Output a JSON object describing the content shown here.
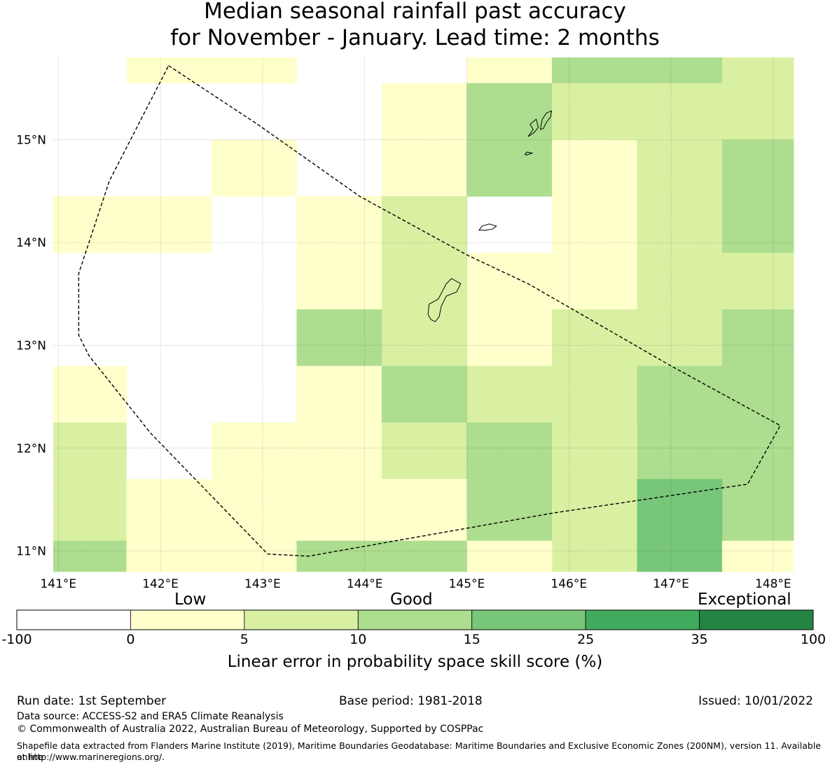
{
  "title": {
    "line1": "Median seasonal rainfall past accuracy",
    "line2": "for November - January. Lead time: 2 months"
  },
  "map": {
    "lon_range": [
      140.95,
      148.2
    ],
    "lat_range": [
      10.8,
      15.8
    ],
    "lon_ticks": [
      {
        "value": 141,
        "label": "141°E"
      },
      {
        "value": 142,
        "label": "142°E"
      },
      {
        "value": 143,
        "label": "143°E"
      },
      {
        "value": 144,
        "label": "144°E"
      },
      {
        "value": 145,
        "label": "145°E"
      },
      {
        "value": 146,
        "label": "146°E"
      },
      {
        "value": 147,
        "label": "147°E"
      },
      {
        "value": 148,
        "label": "148°E"
      }
    ],
    "lat_ticks": [
      {
        "value": 15,
        "label": "15°N"
      },
      {
        "value": 14,
        "label": "14°N"
      },
      {
        "value": 13,
        "label": "13°N"
      },
      {
        "value": 12,
        "label": "12°N"
      },
      {
        "value": 11,
        "label": "11°N"
      }
    ],
    "grid": true,
    "colors": [
      "#ffffff",
      "#ffffcc",
      "#d9f0a3",
      "#addd8e",
      "#78c679",
      "#41ab5d",
      "#238443"
    ],
    "cells": [
      {
        "lon": [
          141.6667,
          143.3333
        ],
        "lat": [
          15.55,
          15.8
        ],
        "cls": 1
      },
      {
        "lon": [
          144.1667,
          145.0
        ],
        "lat": [
          14.45,
          15.55
        ],
        "cls": 1
      },
      {
        "lon": [
          145.0,
          145.8333
        ],
        "lat": [
          15.55,
          15.8
        ],
        "cls": 1
      },
      {
        "lon": [
          145.0,
          145.8333
        ],
        "lat": [
          14.45,
          15.55
        ],
        "cls": 3
      },
      {
        "lon": [
          145.8333,
          147.5
        ],
        "lat": [
          15.55,
          15.8
        ],
        "cls": 3
      },
      {
        "lon": [
          145.8333,
          147.5
        ],
        "lat": [
          15.0,
          15.55
        ],
        "cls": 2
      },
      {
        "lon": [
          147.5,
          148.2
        ],
        "lat": [
          15.0,
          15.8
        ],
        "cls": 2
      },
      {
        "lon": [
          142.5,
          143.3333
        ],
        "lat": [
          14.45,
          15.0
        ],
        "cls": 1
      },
      {
        "lon": [
          145.8333,
          146.6667
        ],
        "lat": [
          13.35,
          15.0
        ],
        "cls": 1
      },
      {
        "lon": [
          146.6667,
          147.5
        ],
        "lat": [
          13.35,
          15.0
        ],
        "cls": 2
      },
      {
        "lon": [
          147.5,
          148.2
        ],
        "lat": [
          13.9,
          15.0
        ],
        "cls": 3
      },
      {
        "lon": [
          140.95,
          142.5
        ],
        "lat": [
          13.9,
          14.45
        ],
        "cls": 1
      },
      {
        "lon": [
          143.3333,
          144.1667
        ],
        "lat": [
          13.35,
          14.45
        ],
        "cls": 1
      },
      {
        "lon": [
          144.1667,
          145.0
        ],
        "lat": [
          12.8,
          14.45
        ],
        "cls": 2
      },
      {
        "lon": [
          145.0,
          145.8333
        ],
        "lat": [
          12.8,
          13.9
        ],
        "cls": 1
      },
      {
        "lon": [
          147.5,
          148.2
        ],
        "lat": [
          13.35,
          13.9
        ],
        "cls": 2
      },
      {
        "lon": [
          143.3333,
          144.1667
        ],
        "lat": [
          12.8,
          13.35
        ],
        "cls": 3
      },
      {
        "lon": [
          145.8333,
          147.5
        ],
        "lat": [
          12.8,
          13.35
        ],
        "cls": 2
      },
      {
        "lon": [
          147.5,
          148.2
        ],
        "lat": [
          11.1,
          13.35
        ],
        "cls": 3
      },
      {
        "lon": [
          140.95,
          141.6667
        ],
        "lat": [
          12.25,
          12.8
        ],
        "cls": 1
      },
      {
        "lon": [
          143.3333,
          144.1667
        ],
        "lat": [
          12.25,
          12.8
        ],
        "cls": 1
      },
      {
        "lon": [
          144.1667,
          145.0
        ],
        "lat": [
          12.25,
          12.8
        ],
        "cls": 3
      },
      {
        "lon": [
          145.0,
          146.6667
        ],
        "lat": [
          12.25,
          12.8
        ],
        "cls": 2
      },
      {
        "lon": [
          146.6667,
          147.5
        ],
        "lat": [
          11.7,
          12.8
        ],
        "cls": 3
      },
      {
        "lon": [
          140.95,
          141.6667
        ],
        "lat": [
          11.1,
          12.25
        ],
        "cls": 2
      },
      {
        "lon": [
          142.5,
          144.1667
        ],
        "lat": [
          11.7,
          12.25
        ],
        "cls": 1
      },
      {
        "lon": [
          144.1667,
          145.0
        ],
        "lat": [
          11.7,
          12.25
        ],
        "cls": 2
      },
      {
        "lon": [
          145.0,
          145.8333
        ],
        "lat": [
          11.1,
          12.25
        ],
        "cls": 3
      },
      {
        "lon": [
          145.8333,
          146.6667
        ],
        "lat": [
          10.8,
          12.25
        ],
        "cls": 2
      },
      {
        "lon": [
          141.6667,
          145.0
        ],
        "lat": [
          11.1,
          11.7
        ],
        "cls": 1
      },
      {
        "lon": [
          146.6667,
          147.5
        ],
        "lat": [
          10.8,
          11.7
        ],
        "cls": 4
      },
      {
        "lon": [
          140.95,
          141.6667
        ],
        "lat": [
          10.8,
          11.1
        ],
        "cls": 3
      },
      {
        "lon": [
          141.6667,
          143.3333
        ],
        "lat": [
          10.8,
          11.1
        ],
        "cls": 1
      },
      {
        "lon": [
          143.3333,
          145.0
        ],
        "lat": [
          10.8,
          11.1
        ],
        "cls": 3
      },
      {
        "lon": [
          145.0,
          145.8333
        ],
        "lat": [
          10.8,
          11.1
        ],
        "cls": 1
      },
      {
        "lon": [
          147.5,
          148.2
        ],
        "lat": [
          10.8,
          11.1
        ],
        "cls": 1
      }
    ],
    "eez_boundary": [
      [
        142.08,
        15.72
      ],
      [
        142.95,
        15.15
      ],
      [
        143.95,
        14.45
      ],
      [
        145.0,
        13.88
      ],
      [
        145.6,
        13.6
      ],
      [
        147.0,
        12.8
      ],
      [
        148.07,
        12.22
      ],
      [
        147.75,
        11.65
      ],
      [
        145.85,
        11.37
      ],
      [
        143.45,
        10.95
      ],
      [
        143.05,
        10.97
      ],
      [
        141.9,
        12.15
      ],
      [
        141.3,
        12.9
      ],
      [
        141.2,
        13.1
      ],
      [
        141.2,
        13.7
      ],
      [
        141.5,
        14.6
      ],
      [
        142.08,
        15.72
      ]
    ],
    "islands": [
      [
        [
          144.65,
          13.25
        ],
        [
          144.62,
          13.3
        ],
        [
          144.63,
          13.4
        ],
        [
          144.72,
          13.45
        ],
        [
          144.8,
          13.6
        ],
        [
          144.85,
          13.65
        ],
        [
          144.94,
          13.6
        ],
        [
          144.9,
          13.52
        ],
        [
          144.8,
          13.48
        ],
        [
          144.75,
          13.38
        ],
        [
          144.73,
          13.28
        ],
        [
          144.69,
          13.23
        ],
        [
          144.65,
          13.25
        ]
      ],
      [
        [
          145.12,
          14.12
        ],
        [
          145.15,
          14.16
        ],
        [
          145.22,
          14.18
        ],
        [
          145.29,
          14.16
        ],
        [
          145.25,
          14.13
        ],
        [
          145.18,
          14.12
        ],
        [
          145.12,
          14.12
        ]
      ],
      [
        [
          145.57,
          14.86
        ],
        [
          145.59,
          14.88
        ],
        [
          145.64,
          14.87
        ],
        [
          145.58,
          14.85
        ],
        [
          145.57,
          14.86
        ]
      ],
      [
        [
          145.6,
          15.03
        ],
        [
          145.65,
          15.1
        ],
        [
          145.62,
          15.15
        ],
        [
          145.68,
          15.2
        ],
        [
          145.7,
          15.12
        ],
        [
          145.66,
          15.07
        ],
        [
          145.6,
          15.03
        ]
      ],
      [
        [
          145.72,
          15.1
        ],
        [
          145.74,
          15.2
        ],
        [
          145.78,
          15.26
        ],
        [
          145.83,
          15.28
        ],
        [
          145.82,
          15.22
        ],
        [
          145.78,
          15.17
        ],
        [
          145.75,
          15.11
        ],
        [
          145.72,
          15.1
        ]
      ]
    ]
  },
  "legend": {
    "categories": {
      "low": "Low",
      "good": "Good",
      "exceptional": "Exceptional"
    },
    "colors": [
      "#ffffff",
      "#ffffcc",
      "#d9f0a3",
      "#addd8e",
      "#78c679",
      "#41ab5d",
      "#238443"
    ],
    "ticks": [
      "-100",
      "0",
      "5",
      "10",
      "15",
      "25",
      "35",
      "100"
    ],
    "label": "Linear error in probability space skill score (%)"
  },
  "footer": {
    "run_date": "Run date: 1st September",
    "base_period": "Base period: 1981-2018",
    "issued": "Issued: 10/01/2022",
    "data_source": "Data source: ACCESS-S2 and ERA5 Climate Reanalysis",
    "copyright": "© Commonwealth of Australia 2022, Australian Bureau of Meteorology, Supported by COSPPac",
    "shapefile_line1": "Shapefile data extracted from Flanders Marine Institute (2019), Maritime Boundaries Geodatabase: Maritime Boundaries and Exclusive Economic Zones (200NM), version 11. Available online",
    "shapefile_line2": "at http://www.marineregions.org/."
  }
}
